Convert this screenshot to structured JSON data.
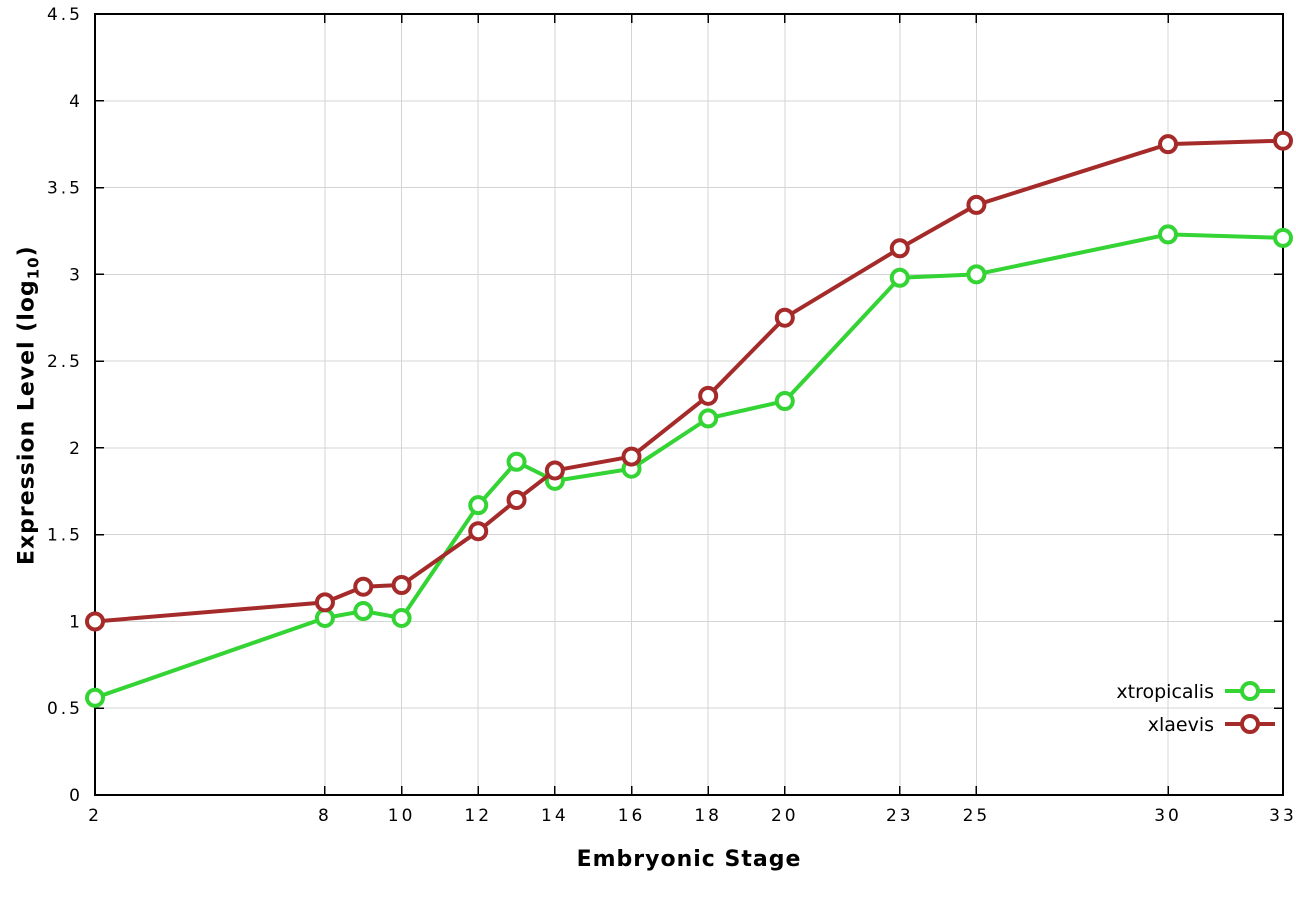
{
  "page": {
    "background": "#ffffff"
  },
  "chart_data": {
    "type": "line",
    "title": "",
    "xlabel": "Embryonic Stage",
    "ylabel": "Expression Level (log10)",
    "ylabel_display": {
      "pre": "Expression Level (log",
      "sub": "10",
      "post": ")"
    },
    "xlim": [
      2,
      33
    ],
    "ylim": [
      0,
      4.5
    ],
    "x_ticks": [
      2,
      8,
      10,
      12,
      14,
      16,
      18,
      20,
      23,
      25,
      30,
      33
    ],
    "y_ticks": [
      0,
      0.5,
      1,
      1.5,
      2,
      2.5,
      3,
      3.5,
      4,
      4.5
    ],
    "grid": true,
    "grid_color": "#d4d4d4",
    "axis_color": "#000000",
    "legend_position": "bottom-right",
    "marker": "open-circle",
    "x": [
      2,
      8,
      9,
      10,
      12,
      13,
      14,
      16,
      18,
      20,
      23,
      25,
      30,
      33
    ],
    "series": [
      {
        "name": "xtropicalis",
        "color": "#33d433",
        "values": [
          0.56,
          1.02,
          1.06,
          1.02,
          1.67,
          1.92,
          1.81,
          1.88,
          2.17,
          2.27,
          2.98,
          3.0,
          3.23,
          3.21
        ]
      },
      {
        "name": "xlaevis",
        "color": "#a52a2a",
        "values": [
          1.0,
          1.11,
          1.2,
          1.21,
          1.52,
          1.7,
          1.87,
          1.95,
          2.3,
          2.75,
          3.15,
          3.4,
          3.75,
          3.77
        ]
      }
    ]
  }
}
